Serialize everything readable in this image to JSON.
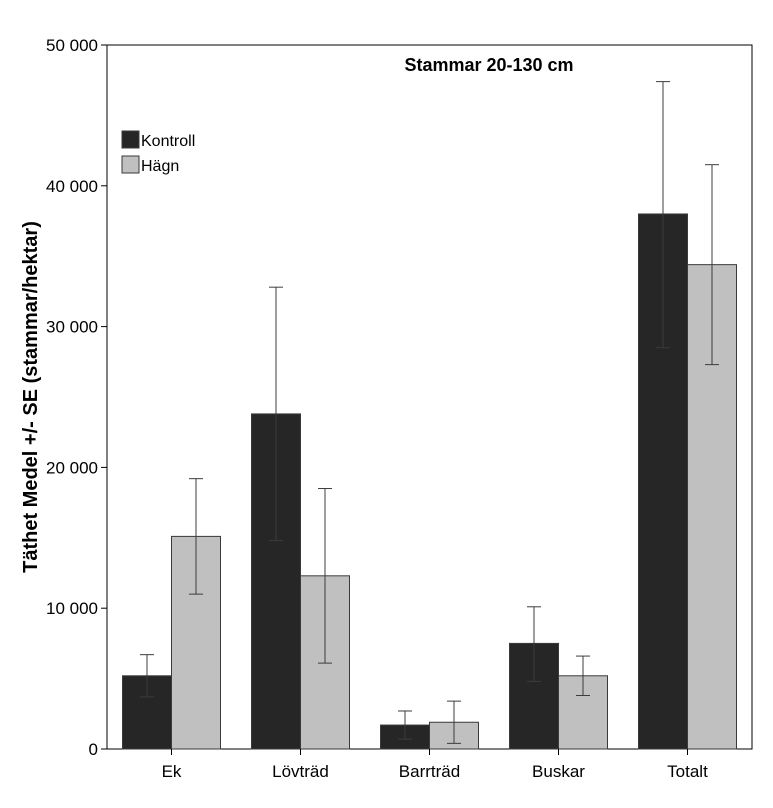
{
  "chart_data": {
    "type": "bar",
    "title": "Stammar 20-130 cm",
    "xlabel": "",
    "ylabel": "Täthet Medel +/- SE (stammar/hektar)",
    "categories": [
      "Ek",
      "Lövträd",
      "Barrträd",
      "Buskar",
      "Totalt"
    ],
    "ylim": [
      0,
      50000
    ],
    "yticks": [
      0,
      10000,
      20000,
      30000,
      40000,
      50000
    ],
    "ytick_labels": [
      "0",
      "10 000",
      "20 000",
      "30 000",
      "40 000",
      "50 000"
    ],
    "series": [
      {
        "name": "Kontroll",
        "color": "#262626",
        "values": [
          5200,
          23800,
          1700,
          7500,
          38000
        ],
        "err_low": [
          3700,
          14800,
          700,
          4800,
          28500
        ],
        "err_high": [
          6700,
          32800,
          2700,
          10100,
          47400
        ]
      },
      {
        "name": "Hägn",
        "color": "#c0c0c0",
        "values": [
          15100,
          12300,
          1900,
          5200,
          34400
        ],
        "err_low": [
          11000,
          6100,
          400,
          3800,
          27300
        ],
        "err_high": [
          19200,
          18500,
          3400,
          6600,
          41500
        ]
      }
    ],
    "legend_position": "top-left",
    "grid": false
  }
}
